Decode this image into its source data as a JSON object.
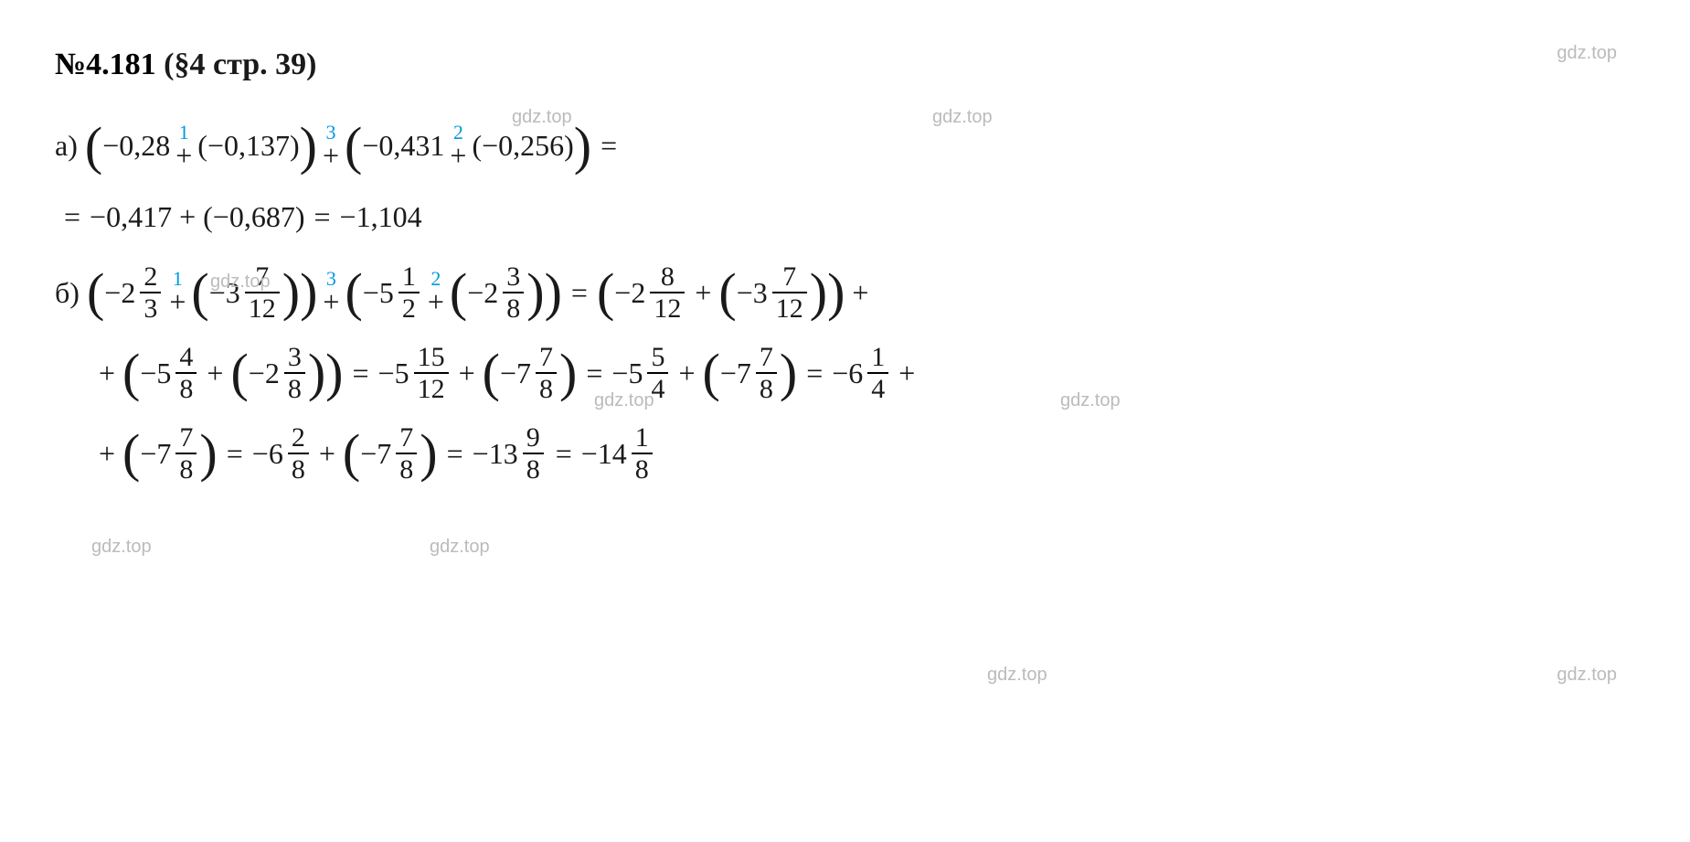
{
  "header": {
    "prefix": "№",
    "number": "4.181",
    "suffix": " (§4 стр. 39)"
  },
  "watermark": "gdz.top",
  "colors": {
    "text": "#1a1a1a",
    "sup": "#0099dd",
    "watermark": "#bbbbbb",
    "background": "#ffffff",
    "frac_rule": "#000000"
  },
  "typography": {
    "base_fontsize": 32,
    "header_fontsize": 34,
    "sup_fontsize": 22,
    "watermark_fontsize": 20,
    "paren_fontsize": 58,
    "frac_fontsize": 30
  },
  "labels": {
    "a": "а)",
    "b": "б)"
  },
  "part_a": {
    "line1": {
      "t1": "−0,28",
      "sup1": "1",
      "t2": "−0,137",
      "sup2": "3",
      "t3": "−0,431",
      "sup3": "2",
      "t4": "−0,256"
    },
    "line2": {
      "t1": "−0,417",
      "t2": "−0,687",
      "t3": "−1,104"
    }
  },
  "ops": {
    "plus": "+",
    "eq": "=",
    "lp": "(",
    "rp": ")"
  },
  "part_b": {
    "line1": {
      "m1_w": "−2",
      "m1_n": "2",
      "m1_d": "3",
      "sup1": "1",
      "m2_w": "−3",
      "m2_n": "7",
      "m2_d": "12",
      "sup2": "3",
      "m3_w": "−5",
      "m3_n": "1",
      "m3_d": "2",
      "sup3": "2",
      "m4_w": "−2",
      "m4_n": "3",
      "m4_d": "8",
      "m5_w": "−2",
      "m5_n": "8",
      "m5_d": "12",
      "m6_w": "−3",
      "m6_n": "7",
      "m6_d": "12"
    },
    "line2": {
      "m1_w": "−5",
      "m1_n": "4",
      "m1_d": "8",
      "m2_w": "−2",
      "m2_n": "3",
      "m2_d": "8",
      "m3_w": "−5",
      "m3_n": "15",
      "m3_d": "12",
      "m4_w": "−7",
      "m4_n": "7",
      "m4_d": "8",
      "m5_w": "−5",
      "m5_n": "5",
      "m5_d": "4",
      "m6_w": "−7",
      "m6_n": "7",
      "m6_d": "8",
      "m7_w": "−6",
      "m7_n": "1",
      "m7_d": "4"
    },
    "line3": {
      "m1_w": "−7",
      "m1_n": "7",
      "m1_d": "8",
      "m2_w": "−6",
      "m2_n": "2",
      "m2_d": "8",
      "m3_w": "−7",
      "m3_n": "7",
      "m3_d": "8",
      "m4_w": "−13",
      "m4_n": "9",
      "m4_d": "8",
      "m5_w": "−14",
      "m5_n": "1",
      "m5_d": "8"
    }
  }
}
